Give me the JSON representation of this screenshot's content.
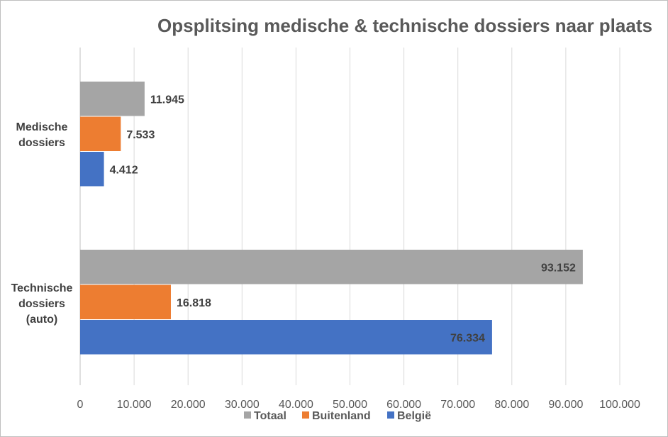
{
  "chart_data": {
    "type": "bar",
    "orientation": "horizontal",
    "title": "Opsplitsing medische & technische dossiers naar plaats",
    "categories": [
      [
        "Medische",
        "dossiers"
      ],
      [
        "Technische",
        "dossiers",
        "(auto)"
      ]
    ],
    "series": [
      {
        "name": "Totaal",
        "color": "#a5a5a5",
        "values": [
          11945,
          93152
        ],
        "labels": [
          "11.945",
          "93.152"
        ]
      },
      {
        "name": "Buitenland",
        "color": "#ed7d31",
        "values": [
          7533,
          16818
        ],
        "labels": [
          "7.533",
          "16.818"
        ]
      },
      {
        "name": "België",
        "color": "#4472c4",
        "values": [
          4412,
          76334
        ],
        "labels": [
          "4.412",
          "76.334"
        ]
      }
    ],
    "xlim": [
      0,
      100000
    ],
    "ticks": [
      0,
      10000,
      20000,
      30000,
      40000,
      50000,
      60000,
      70000,
      80000,
      90000,
      100000
    ],
    "tick_labels": [
      "0",
      "10.000",
      "20.000",
      "30.000",
      "40.000",
      "50.000",
      "60.000",
      "70.000",
      "80.000",
      "90.000",
      "100.000"
    ],
    "grid": true,
    "legend_position": "bottom"
  }
}
